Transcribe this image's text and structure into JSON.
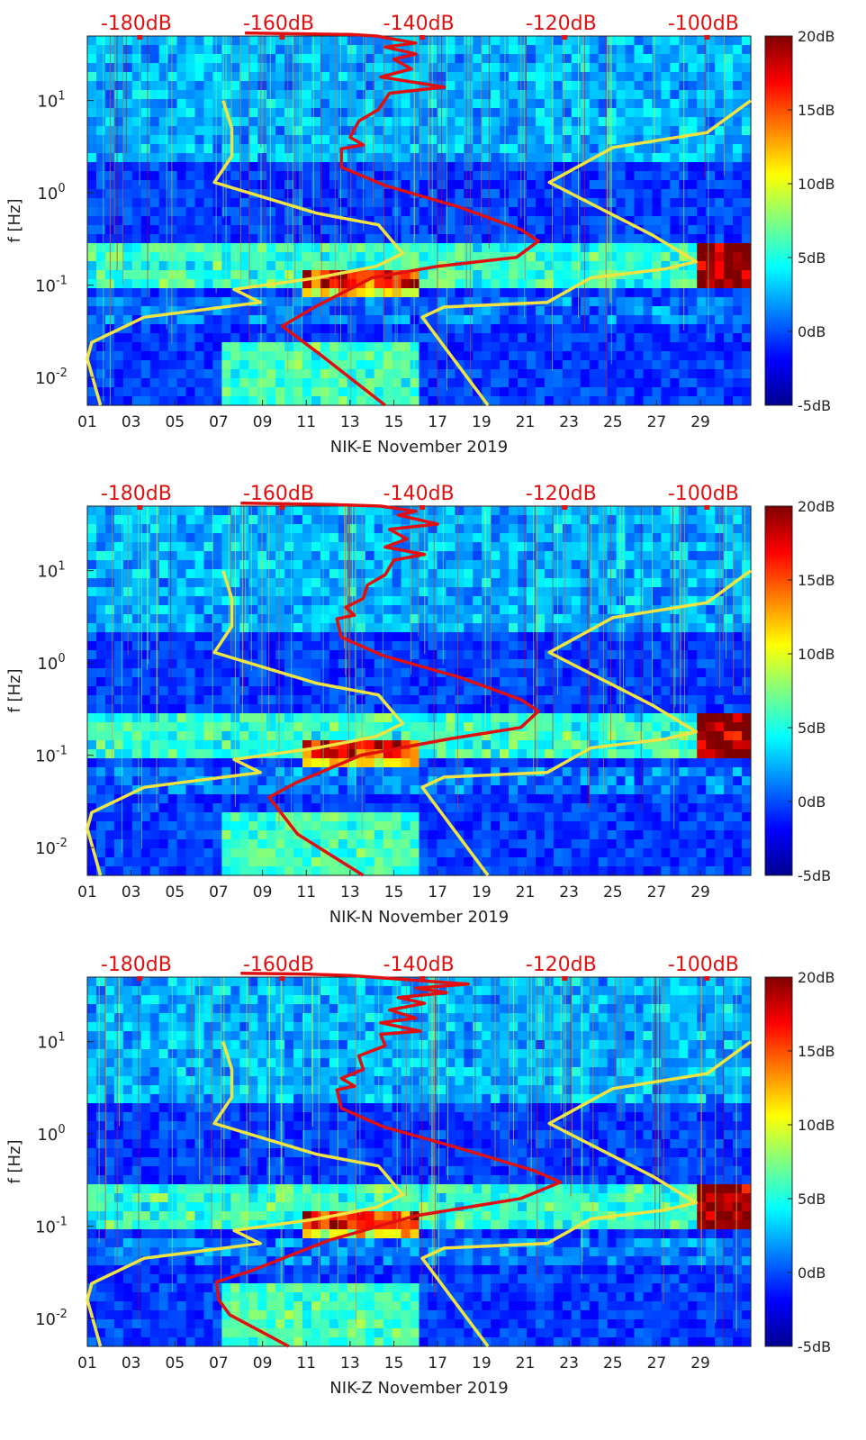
{
  "figure": {
    "colorbar_ticks": [
      "20dB",
      "15dB",
      "10dB",
      "5dB",
      "0dB",
      "-5dB"
    ],
    "colormap": [
      "#00008f",
      "#0000ff",
      "#0080ff",
      "#00ffff",
      "#80ff80",
      "#ffff00",
      "#ff8000",
      "#ff0000",
      "#800000"
    ],
    "model_curve_color": "#f0e442",
    "psd_curve_color": "#e01010",
    "top_axis_color": "#e01010"
  },
  "chart_data": [
    {
      "type": "heatmap",
      "station": "NIK-E",
      "xlabel": "NIK-E November 2019",
      "ylabel": "f [Hz]",
      "xticks": [
        "01",
        "03",
        "05",
        "07",
        "09",
        "11",
        "13",
        "15",
        "17",
        "19",
        "21",
        "23",
        "25",
        "27",
        "29"
      ],
      "xlim_days": [
        1,
        31.3
      ],
      "yticks": [
        {
          "value": 10,
          "label": "10^1"
        },
        {
          "value": 1,
          "label": "10^0"
        },
        {
          "value": 0.1,
          "label": "10^-1"
        },
        {
          "value": 0.01,
          "label": "10^-2"
        }
      ],
      "ylim_hz": [
        0.005,
        50
      ],
      "top_ticks": [
        {
          "label": "-180dB",
          "day": 3.4
        },
        {
          "label": "-160dB",
          "day": 9.9
        },
        {
          "label": "-140dB",
          "day": 16.3
        },
        {
          "label": "-120dB",
          "day": 22.8
        },
        {
          "label": "-100dB",
          "day": 29.3
        }
      ],
      "clim_db": [
        -5,
        20
      ],
      "noise_model_curve": [
        [
          7.2,
          10
        ],
        [
          7.6,
          5
        ],
        [
          7.6,
          2.5
        ],
        [
          6.8,
          1.3
        ],
        [
          11.5,
          0.6
        ],
        [
          14.3,
          0.45
        ],
        [
          15.4,
          0.22
        ],
        [
          14.2,
          0.16
        ],
        [
          11.5,
          0.12
        ],
        [
          7.7,
          0.09
        ],
        [
          8.9,
          0.065
        ],
        [
          3.6,
          0.045
        ],
        [
          1.2,
          0.024
        ],
        [
          1,
          0.016
        ],
        [
          1.6,
          0.005
        ]
      ],
      "noise_model_curve_right": [
        [
          19.3,
          0.005
        ],
        [
          16.3,
          0.045
        ],
        [
          17.3,
          0.058
        ],
        [
          22.0,
          0.065
        ],
        [
          24,
          0.12
        ],
        [
          27.4,
          0.15
        ],
        [
          28.8,
          0.18
        ],
        [
          26.8,
          0.35
        ],
        [
          22.1,
          1.3
        ],
        [
          25,
          3.1
        ],
        [
          29.3,
          4.5
        ],
        [
          31.3,
          10
        ]
      ],
      "psd_curve": [
        [
          14.6,
          0.005
        ],
        [
          11.6,
          0.018
        ],
        [
          9.9,
          0.036
        ],
        [
          11.5,
          0.06
        ],
        [
          14,
          0.12
        ],
        [
          17,
          0.16
        ],
        [
          20.6,
          0.2
        ],
        [
          21.6,
          0.3
        ],
        [
          20.8,
          0.4
        ],
        [
          18,
          0.7
        ],
        [
          14.6,
          1.2
        ],
        [
          12.6,
          1.9
        ],
        [
          12.6,
          3
        ],
        [
          13.6,
          3.3
        ],
        [
          13.0,
          4
        ],
        [
          13.4,
          6
        ],
        [
          14.3,
          8
        ],
        [
          14.8,
          12
        ],
        [
          17.3,
          14
        ],
        [
          14.4,
          18
        ],
        [
          15.8,
          22
        ],
        [
          15.0,
          28
        ],
        [
          16.0,
          32
        ],
        [
          14.6,
          38
        ],
        [
          16.0,
          42
        ],
        [
          14.2,
          50
        ],
        [
          13.0,
          52
        ],
        [
          8.2,
          54
        ]
      ],
      "noise_features": {
        "microseism_band_hz": [
          0.1,
          0.3
        ],
        "ocean_storm_day": 29.8,
        "storm_band_days": [
          11,
          16
        ]
      }
    },
    {
      "type": "heatmap",
      "station": "NIK-N",
      "xlabel": "NIK-N November 2019",
      "ylabel": "f [Hz]",
      "xticks": [
        "01",
        "03",
        "05",
        "07",
        "09",
        "11",
        "13",
        "15",
        "17",
        "19",
        "21",
        "23",
        "25",
        "27",
        "29"
      ],
      "xlim_days": [
        1,
        31.3
      ],
      "yticks": [
        {
          "value": 10,
          "label": "10^1"
        },
        {
          "value": 1,
          "label": "10^0"
        },
        {
          "value": 0.1,
          "label": "10^-1"
        },
        {
          "value": 0.01,
          "label": "10^-2"
        }
      ],
      "ylim_hz": [
        0.005,
        50
      ],
      "top_ticks": [
        {
          "label": "-180dB",
          "day": 3.4
        },
        {
          "label": "-160dB",
          "day": 9.9
        },
        {
          "label": "-140dB",
          "day": 16.3
        },
        {
          "label": "-120dB",
          "day": 22.8
        },
        {
          "label": "-100dB",
          "day": 29.3
        }
      ],
      "clim_db": [
        -5,
        20
      ],
      "noise_model_curve": [
        [
          7.2,
          10
        ],
        [
          7.6,
          5
        ],
        [
          7.6,
          2.5
        ],
        [
          6.8,
          1.3
        ],
        [
          11.5,
          0.6
        ],
        [
          14.3,
          0.45
        ],
        [
          15.4,
          0.22
        ],
        [
          14.2,
          0.16
        ],
        [
          11.5,
          0.12
        ],
        [
          7.7,
          0.09
        ],
        [
          8.9,
          0.065
        ],
        [
          3.6,
          0.045
        ],
        [
          1.2,
          0.024
        ],
        [
          1,
          0.016
        ],
        [
          1.6,
          0.005
        ]
      ],
      "noise_model_curve_right": [
        [
          19.3,
          0.005
        ],
        [
          16.3,
          0.045
        ],
        [
          17.3,
          0.058
        ],
        [
          22.0,
          0.065
        ],
        [
          24,
          0.12
        ],
        [
          27.4,
          0.15
        ],
        [
          28.8,
          0.18
        ],
        [
          26.8,
          0.35
        ],
        [
          22.1,
          1.3
        ],
        [
          25,
          3.1
        ],
        [
          29.3,
          4.5
        ],
        [
          31.3,
          10
        ]
      ],
      "psd_curve": [
        [
          13.6,
          0.005
        ],
        [
          10.6,
          0.014
        ],
        [
          9.3,
          0.035
        ],
        [
          10.5,
          0.05
        ],
        [
          13.5,
          0.1
        ],
        [
          17.5,
          0.15
        ],
        [
          20.8,
          0.2
        ],
        [
          21.6,
          0.3
        ],
        [
          20.8,
          0.4
        ],
        [
          18,
          0.7
        ],
        [
          14.5,
          1.2
        ],
        [
          12.6,
          1.9
        ],
        [
          12.4,
          3
        ],
        [
          13.2,
          3.3
        ],
        [
          12.8,
          4
        ],
        [
          13.6,
          5
        ],
        [
          13.8,
          7
        ],
        [
          14.6,
          9
        ],
        [
          15.0,
          13
        ],
        [
          16.4,
          15
        ],
        [
          14.6,
          18
        ],
        [
          15.6,
          22
        ],
        [
          14.8,
          28
        ],
        [
          17.0,
          32
        ],
        [
          15.2,
          40
        ],
        [
          16.0,
          44
        ],
        [
          14.4,
          50
        ],
        [
          12.2,
          52
        ],
        [
          8.0,
          54
        ]
      ],
      "noise_features": {
        "microseism_band_hz": [
          0.1,
          0.3
        ],
        "ocean_storm_day": 29.8,
        "storm_band_days": [
          11,
          16
        ]
      }
    },
    {
      "type": "heatmap",
      "station": "NIK-Z",
      "xlabel": "NIK-Z November 2019",
      "ylabel": "f [Hz]",
      "xticks": [
        "01",
        "03",
        "05",
        "07",
        "09",
        "11",
        "13",
        "15",
        "17",
        "19",
        "21",
        "23",
        "25",
        "27",
        "29"
      ],
      "xlim_days": [
        1,
        31.3
      ],
      "yticks": [
        {
          "value": 10,
          "label": "10^1"
        },
        {
          "value": 1,
          "label": "10^0"
        },
        {
          "value": 0.1,
          "label": "10^-1"
        },
        {
          "value": 0.01,
          "label": "10^-2"
        }
      ],
      "ylim_hz": [
        0.005,
        50
      ],
      "top_ticks": [
        {
          "label": "-180dB",
          "day": 3.4
        },
        {
          "label": "-160dB",
          "day": 9.9
        },
        {
          "label": "-140dB",
          "day": 16.3
        },
        {
          "label": "-120dB",
          "day": 22.8
        },
        {
          "label": "-100dB",
          "day": 29.3
        }
      ],
      "clim_db": [
        -5,
        20
      ],
      "noise_model_curve": [
        [
          7.2,
          10
        ],
        [
          7.6,
          5
        ],
        [
          7.6,
          2.5
        ],
        [
          6.8,
          1.3
        ],
        [
          11.5,
          0.6
        ],
        [
          14.3,
          0.45
        ],
        [
          15.4,
          0.22
        ],
        [
          14.2,
          0.16
        ],
        [
          11.5,
          0.12
        ],
        [
          7.7,
          0.09
        ],
        [
          8.9,
          0.065
        ],
        [
          3.6,
          0.045
        ],
        [
          1.2,
          0.024
        ],
        [
          1,
          0.016
        ],
        [
          1.6,
          0.005
        ]
      ],
      "noise_model_curve_right": [
        [
          19.3,
          0.005
        ],
        [
          16.3,
          0.045
        ],
        [
          17.3,
          0.058
        ],
        [
          22.0,
          0.065
        ],
        [
          24,
          0.12
        ],
        [
          27.4,
          0.15
        ],
        [
          28.8,
          0.18
        ],
        [
          26.8,
          0.35
        ],
        [
          22.1,
          1.3
        ],
        [
          25,
          3.1
        ],
        [
          29.3,
          4.5
        ],
        [
          31.3,
          10
        ]
      ],
      "psd_curve": [
        [
          10.2,
          0.005
        ],
        [
          7.5,
          0.011
        ],
        [
          7.0,
          0.016
        ],
        [
          6.9,
          0.025
        ],
        [
          8.5,
          0.033
        ],
        [
          12,
          0.07
        ],
        [
          16,
          0.13
        ],
        [
          20.8,
          0.2
        ],
        [
          22.6,
          0.3
        ],
        [
          21.4,
          0.4
        ],
        [
          18,
          0.7
        ],
        [
          14.5,
          1.2
        ],
        [
          12.6,
          1.9
        ],
        [
          12.4,
          3
        ],
        [
          13.2,
          3.3
        ],
        [
          12.6,
          4
        ],
        [
          13.6,
          5
        ],
        [
          13.4,
          7
        ],
        [
          14.6,
          9
        ],
        [
          14.4,
          12
        ],
        [
          16.2,
          13
        ],
        [
          14.4,
          16
        ],
        [
          16.0,
          18
        ],
        [
          14.8,
          22
        ],
        [
          16.4,
          26
        ],
        [
          15.2,
          30
        ],
        [
          17.4,
          34
        ],
        [
          16.0,
          38
        ],
        [
          18.4,
          42
        ],
        [
          15.0,
          48
        ],
        [
          13.0,
          52
        ],
        [
          11.0,
          54
        ],
        [
          8.0,
          55
        ]
      ],
      "noise_features": {
        "microseism_band_hz": [
          0.1,
          0.3
        ],
        "ocean_storm_day": 29.8,
        "storm_band_days": [
          11,
          16
        ]
      }
    }
  ]
}
